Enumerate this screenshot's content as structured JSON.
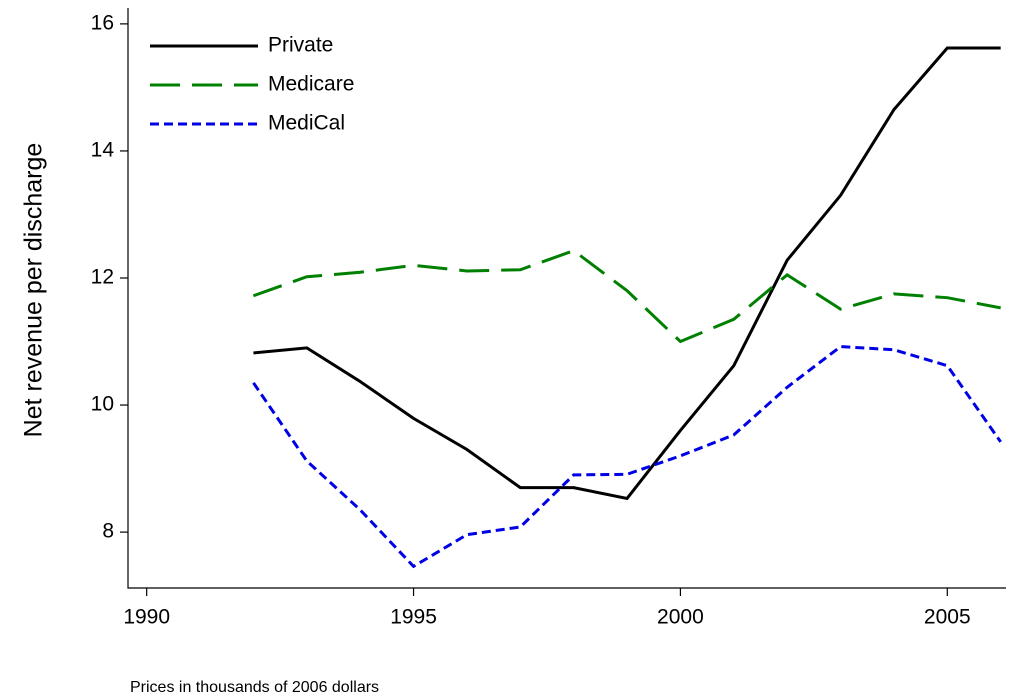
{
  "chart_data": {
    "type": "line",
    "y_label": "Net revenue per discharge",
    "note": "Prices in thousands of 2006 dollars",
    "x": [
      1992,
      1993,
      1994,
      1995,
      1996,
      1997,
      1998,
      1999,
      2000,
      2001,
      2002,
      2003,
      2004,
      2005,
      2006
    ],
    "series": [
      {
        "name": "Private",
        "color": "#000000",
        "linestyle": "solid",
        "values": [
          10.82,
          10.9,
          10.37,
          9.79,
          9.3,
          8.7,
          8.7,
          8.53,
          9.6,
          10.62,
          12.28,
          13.3,
          14.65,
          15.62,
          15.62
        ]
      },
      {
        "name": "Medicare",
        "color": "#008000",
        "linestyle": "dashed",
        "values": [
          11.72,
          12.02,
          12.09,
          12.2,
          12.11,
          12.13,
          12.43,
          11.8,
          11.0,
          11.35,
          12.05,
          11.51,
          11.75,
          11.69,
          11.53
        ]
      },
      {
        "name": "MediCal",
        "color": "#0000e6",
        "linestyle": "dotted",
        "values": [
          10.35,
          9.12,
          8.35,
          7.46,
          7.96,
          8.08,
          8.9,
          8.91,
          9.2,
          9.53,
          10.28,
          10.92,
          10.87,
          10.62,
          9.42
        ]
      }
    ],
    "xlim": [
      1989.65,
      2006.1
    ],
    "xticks": [
      1990,
      1995,
      2000,
      2005
    ],
    "ylim": [
      7.12,
      16.25
    ],
    "yticks": [
      8,
      10,
      12,
      14,
      16
    ],
    "legend": "upper-left",
    "grid": false
  }
}
